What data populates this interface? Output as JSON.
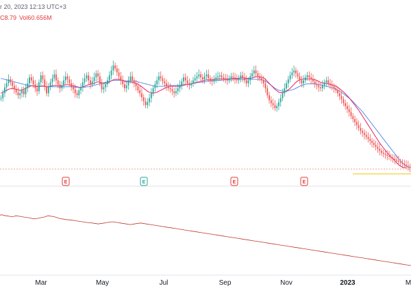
{
  "header": {
    "date_text": "r 20, 2023 12:13 UTC+3",
    "price_fragment": "C8.79",
    "volume_text": "Vol60.656M"
  },
  "colors": {
    "up": "#26a69a",
    "down": "#ef5350",
    "ma_fast": "#e91e63",
    "ma_slow": "#5b8def",
    "lower_line": "#c0392b",
    "price_line": "#f2c200",
    "earnings_red": "#e53935",
    "earnings_green": "#26a69a"
  },
  "chart_data": {
    "type": "candlestick",
    "x_labels": [
      "Mar",
      "May",
      "Jul",
      "Sep",
      "Nov",
      "2023",
      "M"
    ],
    "main": {
      "closes": [
        140,
        150,
        162,
        170,
        178,
        172,
        165,
        158,
        152,
        146,
        150,
        156,
        148,
        160,
        170,
        182,
        176,
        168,
        160,
        154,
        172,
        186,
        178,
        164,
        150,
        164,
        172,
        180,
        188,
        176,
        168,
        160,
        166,
        176,
        184,
        178,
        170,
        162,
        158,
        150,
        146,
        156,
        162,
        172,
        180,
        186,
        176,
        168,
        174,
        182,
        190,
        184,
        170,
        158,
        162,
        168,
        176,
        186,
        196,
        206,
        200,
        192,
        184,
        176,
        168,
        160,
        166,
        176,
        184,
        176,
        170,
        164,
        156,
        150,
        142,
        134,
        126,
        132,
        140,
        150,
        160,
        168,
        176,
        184,
        180,
        174,
        170,
        164,
        160,
        158,
        154,
        150,
        154,
        160,
        166,
        174,
        182,
        176,
        170,
        166,
        170,
        176,
        180,
        184,
        188,
        182,
        178,
        184,
        188,
        180,
        176,
        174,
        178,
        182,
        184,
        186,
        182,
        180,
        178,
        176,
        180,
        184,
        182,
        178,
        176,
        180,
        186,
        182,
        176,
        170,
        176,
        184,
        190,
        196,
        190,
        184,
        180,
        176,
        170,
        160,
        146,
        136,
        130,
        126,
        120,
        124,
        132,
        140,
        150,
        160,
        170,
        178,
        186,
        192,
        196,
        190,
        184,
        176,
        170,
        176,
        182,
        186,
        182,
        178,
        174,
        168,
        166,
        162,
        160,
        166,
        172,
        176,
        170,
        166,
        164,
        160,
        156,
        150,
        144,
        138,
        130,
        124,
        118,
        112,
        104,
        98,
        92,
        86,
        80,
        74,
        70,
        66,
        62,
        58,
        54,
        50,
        46,
        42,
        38,
        34,
        30,
        28,
        26,
        24,
        22,
        20,
        18,
        16,
        14,
        12,
        10,
        8,
        6,
        4,
        2,
        0
      ],
      "y_domain": [
        0,
        200
      ],
      "ma_fast": [
        150,
        152,
        154,
        156,
        158,
        159,
        160,
        159,
        158,
        157,
        156,
        157,
        158,
        160,
        162,
        164,
        165,
        165,
        164,
        163,
        163,
        164,
        165,
        164,
        163,
        163,
        164,
        165,
        166,
        166,
        166,
        165,
        165,
        166,
        167,
        167,
        167,
        166,
        165,
        164,
        163,
        162,
        162,
        163,
        164,
        166,
        167,
        168,
        169,
        170,
        172,
        173,
        172,
        171,
        170,
        170,
        171,
        173,
        175,
        177,
        178,
        178,
        178,
        177,
        176,
        174,
        173,
        173,
        173,
        172,
        171,
        170,
        168,
        166,
        163,
        160,
        157,
        154,
        152,
        151,
        150,
        151,
        152,
        154,
        156,
        158,
        160,
        162,
        163,
        164,
        164,
        164,
        164,
        164,
        164,
        165,
        166,
        167,
        168,
        168,
        169,
        170,
        171,
        172,
        173,
        174,
        175,
        176,
        177,
        177,
        177,
        177,
        178,
        178,
        179,
        179,
        179,
        179,
        179,
        179,
        179,
        180,
        180,
        180,
        180,
        180,
        181,
        181,
        181,
        180,
        180,
        180,
        181,
        182,
        183,
        183,
        183,
        182,
        181,
        178,
        174,
        170,
        166,
        162,
        158,
        155,
        152,
        151,
        151,
        152,
        154,
        157,
        160,
        164,
        168,
        172,
        175,
        177,
        178,
        179,
        179,
        179,
        179,
        179,
        178,
        177,
        176,
        174,
        172,
        171,
        170,
        170,
        169,
        168,
        167,
        166,
        164,
        162,
        159,
        156,
        153,
        149,
        145,
        141,
        136,
        131,
        126,
        121,
        116,
        110,
        104,
        98,
        92,
        86,
        80,
        74,
        68,
        62,
        56,
        50,
        45,
        40,
        35,
        30,
        26,
        22,
        18,
        14,
        10,
        6,
        3,
        1,
        0,
        0
      ],
      "ma_slow": [
        180,
        179,
        178,
        177,
        176,
        175,
        174,
        173,
        172,
        171,
        170,
        169,
        168,
        167,
        166,
        166,
        165,
        165,
        164,
        164,
        164,
        164,
        164,
        164,
        163,
        163,
        163,
        163,
        163,
        163,
        163,
        163,
        163,
        163,
        163,
        163,
        163,
        163,
        163,
        162,
        162,
        162,
        162,
        162,
        162,
        163,
        163,
        164,
        165,
        166,
        167,
        168,
        169,
        170,
        171,
        172,
        173,
        174,
        175,
        176,
        176,
        176,
        176,
        176,
        176,
        175,
        175,
        175,
        175,
        175,
        174,
        174,
        173,
        172,
        171,
        170,
        169,
        168,
        167,
        166,
        165,
        164,
        164,
        164,
        164,
        164,
        165,
        165,
        166,
        166,
        166,
        166,
        166,
        166,
        166,
        167,
        167,
        168,
        168,
        169,
        169,
        170,
        171,
        171,
        172,
        172,
        173,
        173,
        174,
        174,
        175,
        175,
        175,
        176,
        176,
        176,
        176,
        177,
        177,
        177,
        177,
        177,
        178,
        178,
        178,
        178,
        178,
        178,
        178,
        178,
        178,
        178,
        178,
        178,
        178,
        178,
        178,
        177,
        176,
        174,
        172,
        169,
        166,
        163,
        160,
        158,
        156,
        155,
        154,
        154,
        154,
        155,
        156,
        157,
        158,
        160,
        162,
        164,
        166,
        167,
        168,
        169,
        169,
        169,
        169,
        169,
        168,
        168,
        167,
        166,
        165,
        164,
        163,
        162,
        161,
        160,
        158,
        156,
        154,
        152,
        149,
        146,
        143,
        140,
        137,
        133,
        129,
        125,
        121,
        117,
        113,
        108,
        103,
        98,
        93,
        88,
        83,
        78,
        73,
        68,
        63,
        58,
        53,
        48,
        43,
        38,
        33,
        28,
        23,
        18,
        14,
        10,
        6,
        3,
        1,
        0
      ]
    },
    "lower": {
      "values": [
        320,
        322,
        318,
        316,
        314,
        312,
        310,
        312,
        316,
        314,
        312,
        310,
        308,
        306,
        304,
        302,
        298,
        296,
        298,
        300,
        302,
        306,
        308,
        312,
        316,
        314,
        312,
        310,
        306,
        302,
        298,
        296,
        294,
        292,
        290,
        290,
        288,
        286,
        284,
        282,
        280,
        278,
        276,
        274,
        272,
        272,
        270,
        268,
        266,
        264,
        266,
        268,
        270,
        272,
        274,
        276,
        278,
        276,
        274,
        272,
        270,
        268,
        266,
        264,
        262,
        260,
        262,
        264,
        266,
        268,
        270,
        268,
        266,
        264,
        262,
        260,
        258,
        256,
        254,
        252,
        250,
        248,
        246,
        244,
        242,
        240,
        238,
        236,
        234,
        232,
        230,
        228,
        226,
        224,
        222,
        220,
        218,
        216,
        214,
        212,
        210,
        208,
        206,
        204,
        202,
        200,
        198,
        196,
        194,
        192,
        190,
        188,
        186,
        184,
        182,
        180,
        178,
        176,
        174,
        172,
        170,
        168,
        166,
        164,
        162,
        160,
        158,
        156,
        154,
        152,
        150,
        148,
        146,
        144,
        142,
        140,
        138,
        136,
        134,
        132,
        130,
        128,
        126,
        124,
        122,
        120,
        118,
        116,
        114,
        112,
        110,
        108,
        106,
        104,
        102,
        100,
        98,
        96,
        94,
        92,
        90,
        88,
        86,
        84,
        82,
        80,
        78,
        76,
        74,
        72,
        70,
        68,
        66,
        64,
        62,
        60,
        58,
        56,
        54,
        52,
        50,
        48,
        46,
        44,
        42,
        40,
        38,
        36,
        34,
        32,
        30,
        28,
        26,
        24,
        22,
        20,
        18,
        16,
        14,
        12,
        10,
        8,
        6,
        4,
        2,
        0
      ],
      "y_domain": [
        0,
        330
      ]
    },
    "earnings_markers": [
      {
        "label": "E",
        "position": 0.16,
        "kind": "red"
      },
      {
        "label": "E",
        "position": 0.35,
        "kind": "green"
      },
      {
        "label": "E",
        "position": 0.57,
        "kind": "red"
      },
      {
        "label": "E",
        "position": 0.74,
        "kind": "red"
      }
    ]
  }
}
